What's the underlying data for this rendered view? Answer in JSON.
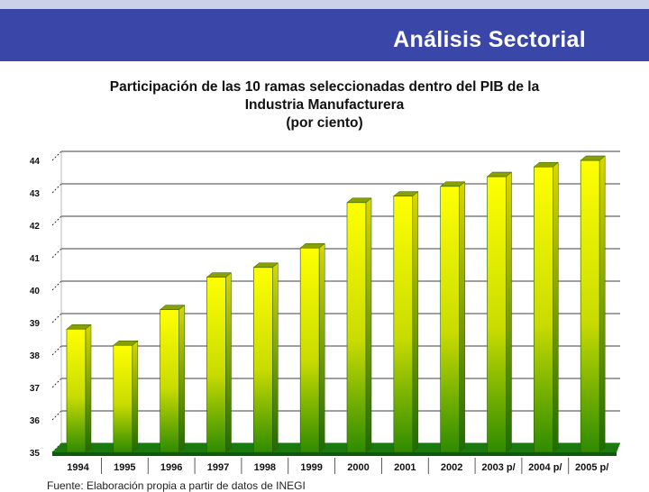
{
  "header": {
    "title": "Análisis Sectorial"
  },
  "chart_data": {
    "type": "bar",
    "title_lines": [
      "Participación de las 10 ramas seleccionadas dentro del PIB de la",
      "Industria Manufacturera",
      "(por ciento)"
    ],
    "categories": [
      "1994",
      "1995",
      "1996",
      "1997",
      "1998",
      "1999",
      "2000",
      "2001",
      "2002",
      "2003 p/",
      "2004 p/",
      "2005 p/"
    ],
    "values": [
      38.8,
      38.3,
      39.4,
      40.4,
      40.7,
      41.3,
      42.7,
      42.9,
      43.2,
      43.5,
      43.8,
      44.0
    ],
    "ylim": [
      35,
      44
    ],
    "yticks": [
      "35",
      "36",
      "37",
      "38",
      "39",
      "40",
      "41",
      "42",
      "43",
      "44"
    ],
    "grid": true,
    "colors": {
      "bar_top": "#ffff00",
      "bar_bottom": "#2e8b00",
      "floor": "#1a7a10",
      "side": "#6a8a00"
    }
  },
  "source": "Fuente: Elaboración propia a partir de datos de INEGI"
}
